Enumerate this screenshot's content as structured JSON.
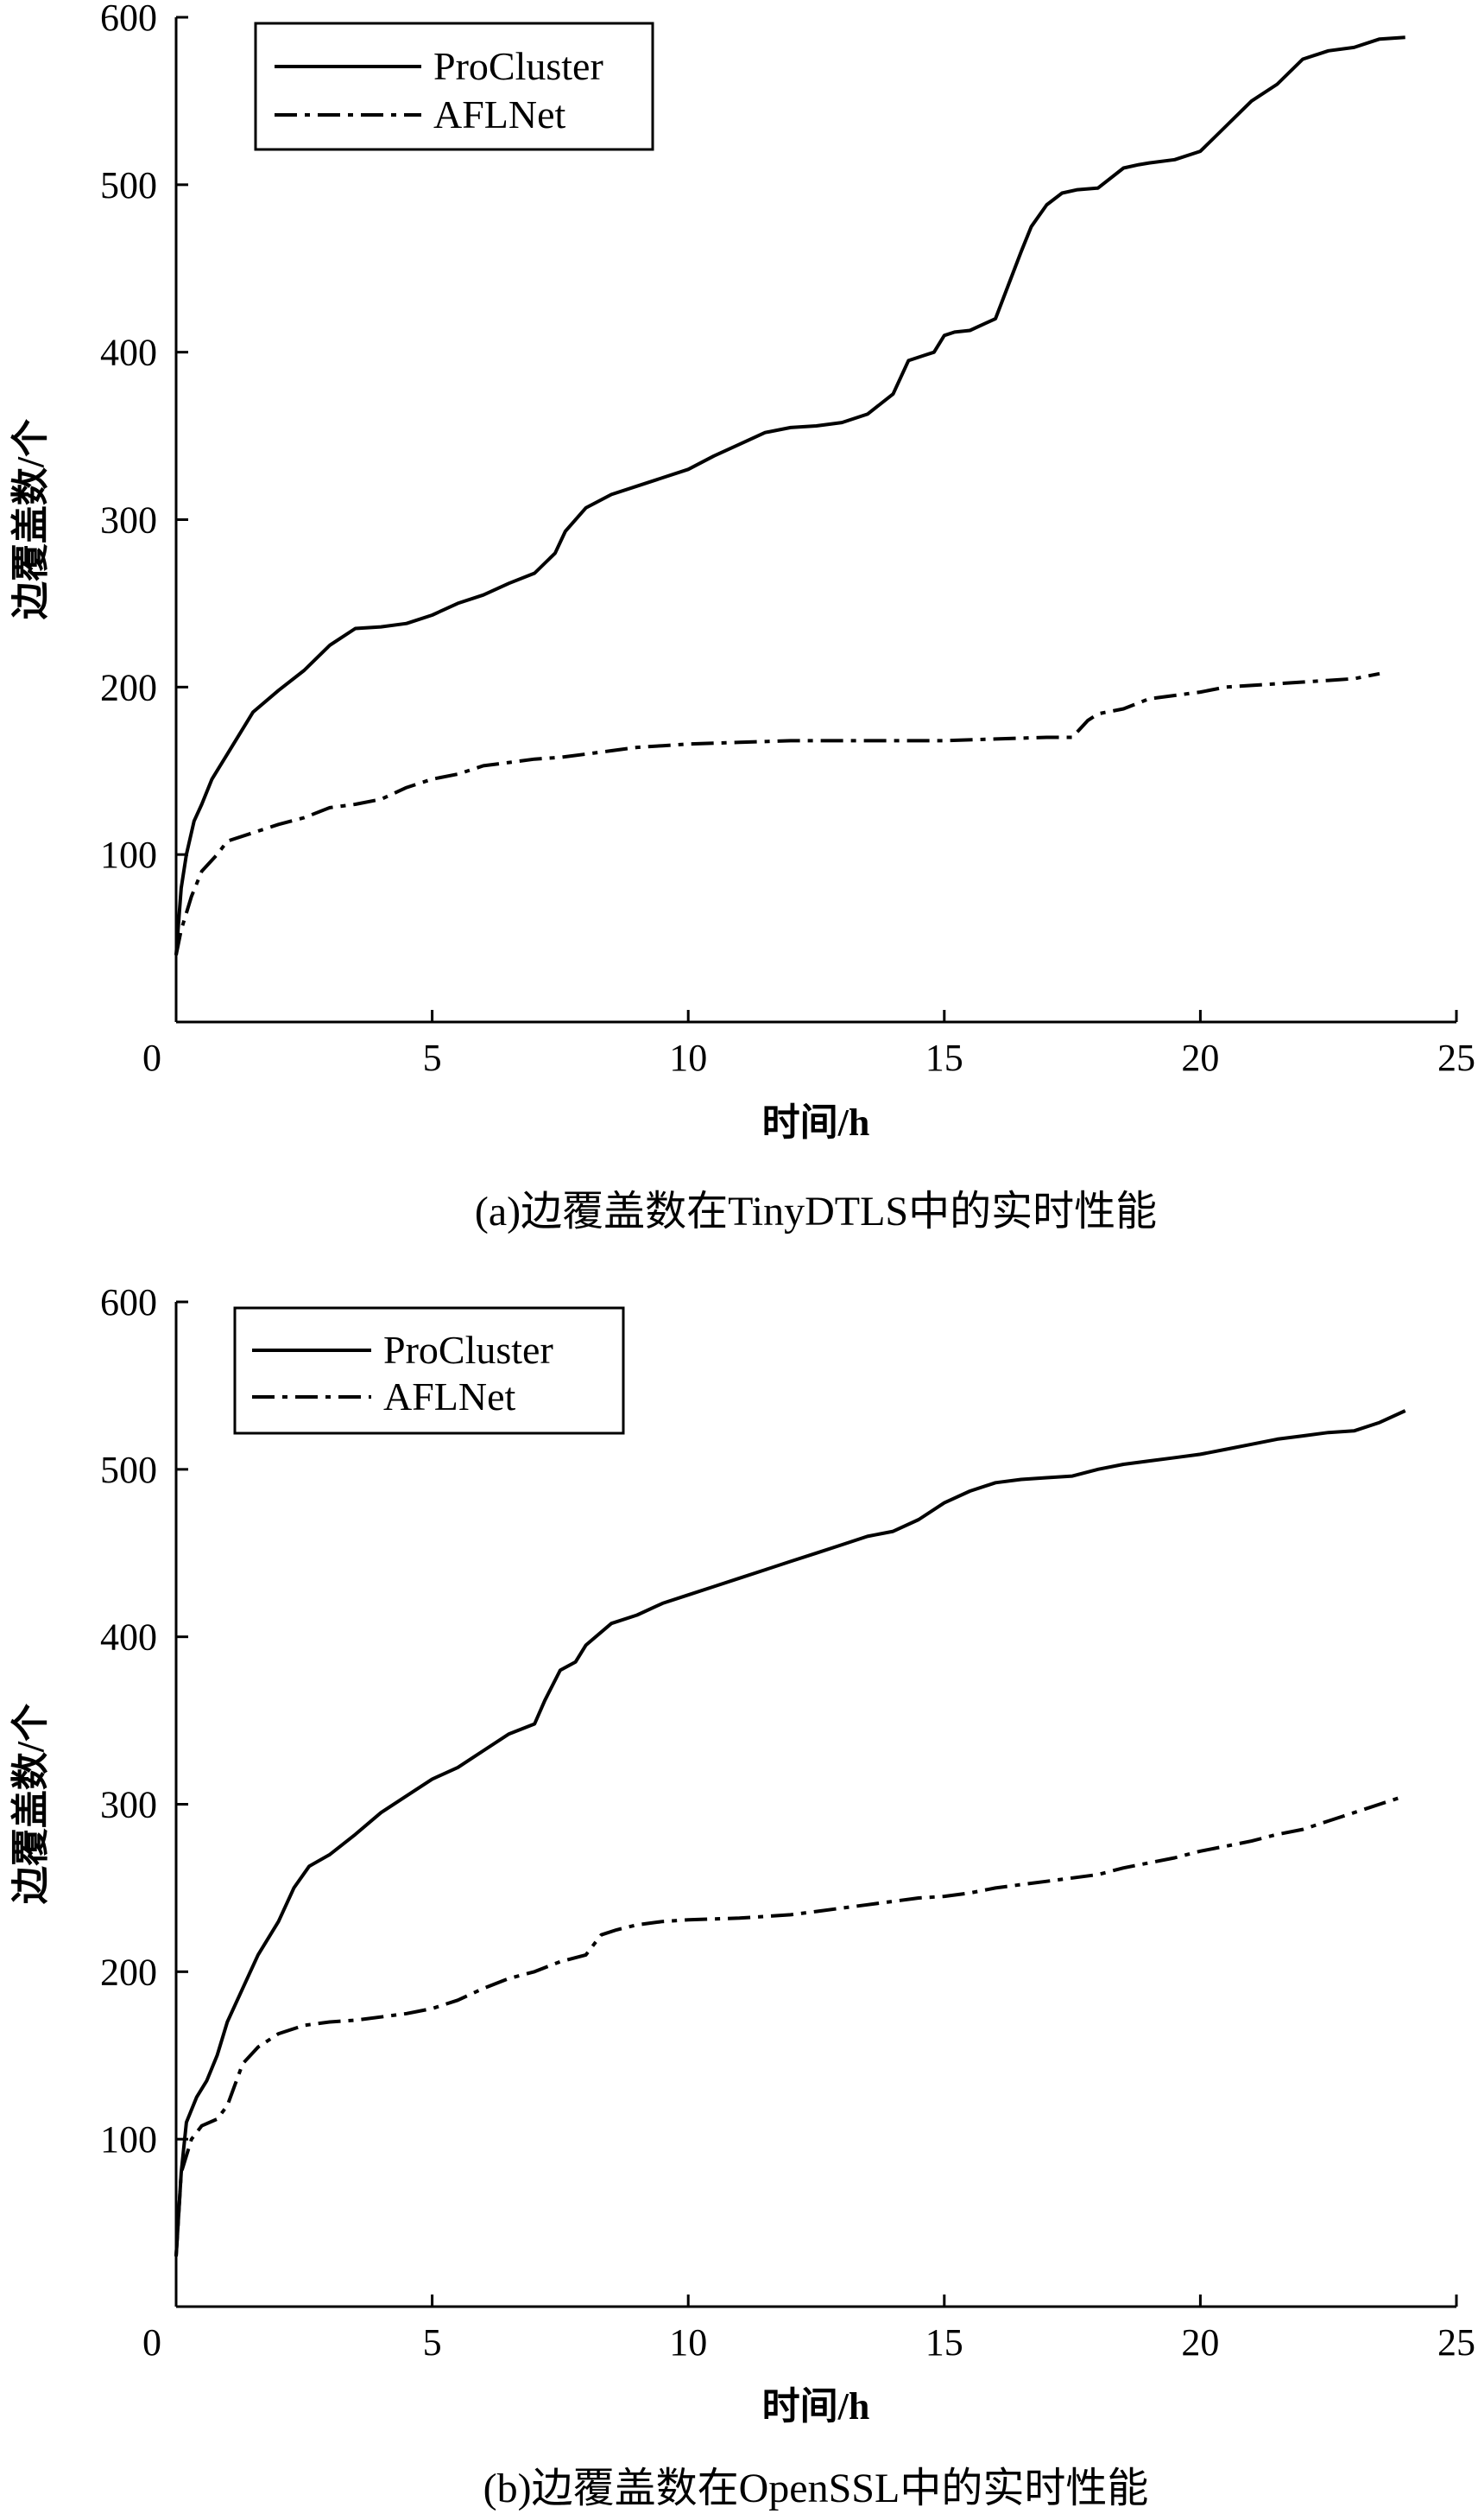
{
  "chart_data": [
    {
      "type": "line",
      "caption": "(a)边覆盖数在TinyDTLS中的实时性能",
      "xlabel": "时间/h",
      "ylabel": "边覆盖数/个",
      "xlim": [
        0,
        25
      ],
      "ylim": [
        0,
        600
      ],
      "xticks": [
        0,
        5,
        10,
        15,
        20,
        25
      ],
      "yticks": [
        100,
        200,
        300,
        400,
        500,
        600
      ],
      "legend_position": "top-left",
      "series": [
        {
          "name": "ProCluster",
          "style": "solid",
          "x": [
            0,
            0.1,
            0.2,
            0.35,
            0.5,
            0.7,
            1.0,
            1.5,
            2.0,
            2.5,
            3.0,
            3.5,
            4.0,
            4.5,
            5.0,
            5.5,
            6.0,
            6.5,
            7.0,
            7.4,
            7.6,
            8.0,
            8.5,
            9.0,
            9.5,
            10.0,
            10.5,
            11.0,
            11.5,
            12.0,
            12.5,
            13.0,
            13.5,
            14.0,
            14.3,
            14.6,
            14.8,
            15.0,
            15.2,
            15.5,
            16.0,
            16.5,
            16.7,
            17.0,
            17.3,
            17.6,
            18.0,
            18.5,
            18.8,
            19.0,
            19.5,
            20.0,
            20.5,
            21.0,
            21.5,
            22.0,
            22.5,
            23.0,
            23.5,
            24.0
          ],
          "y": [
            40,
            80,
            100,
            120,
            130,
            145,
            160,
            185,
            198,
            210,
            225,
            235,
            236,
            238,
            243,
            250,
            255,
            262,
            268,
            280,
            293,
            307,
            315,
            320,
            325,
            330,
            338,
            345,
            352,
            355,
            356,
            358,
            363,
            375,
            395,
            398,
            400,
            410,
            412,
            413,
            420,
            460,
            475,
            488,
            495,
            497,
            498,
            510,
            512,
            513,
            515,
            520,
            535,
            550,
            560,
            575,
            580,
            582,
            587,
            588
          ]
        },
        {
          "name": "AFLNet",
          "style": "dash-dot",
          "x": [
            0,
            0.1,
            0.3,
            0.5,
            0.8,
            1.0,
            1.5,
            2.0,
            2.5,
            3.0,
            3.5,
            4.0,
            4.5,
            5.0,
            5.5,
            6.0,
            6.5,
            7.0,
            7.5,
            8.0,
            8.5,
            9.0,
            9.5,
            10.0,
            11.0,
            12.0,
            13.0,
            14.0,
            15.0,
            16.0,
            17.0,
            17.5,
            17.8,
            18.0,
            18.5,
            19.0,
            19.5,
            20.0,
            20.5,
            21.0,
            22.0,
            22.5,
            23.0,
            23.5
          ],
          "y": [
            40,
            55,
            75,
            90,
            100,
            108,
            113,
            118,
            122,
            128,
            130,
            133,
            140,
            145,
            148,
            153,
            155,
            157,
            158,
            160,
            162,
            164,
            165,
            166,
            167,
            168,
            168,
            168,
            168,
            169,
            170,
            170,
            180,
            184,
            187,
            193,
            195,
            197,
            200,
            201,
            203,
            204,
            205,
            208
          ]
        }
      ]
    },
    {
      "type": "line",
      "caption": "(b)边覆盖数在OpenSSL中的实时性能",
      "xlabel": "时间/h",
      "ylabel": "边覆盖数/个",
      "xlim": [
        0,
        25
      ],
      "ylim": [
        0,
        600
      ],
      "xticks": [
        0,
        5,
        10,
        15,
        20,
        25
      ],
      "yticks": [
        100,
        200,
        300,
        400,
        500,
        600
      ],
      "legend_position": "top-left",
      "series": [
        {
          "name": "ProCluster",
          "style": "solid",
          "x": [
            0,
            0.1,
            0.2,
            0.4,
            0.6,
            0.8,
            1.0,
            1.3,
            1.6,
            2.0,
            2.3,
            2.6,
            3.0,
            3.5,
            4.0,
            4.5,
            5.0,
            5.5,
            6.0,
            6.5,
            7.0,
            7.2,
            7.5,
            7.8,
            8.0,
            8.5,
            9.0,
            9.5,
            10.0,
            10.5,
            11.0,
            11.5,
            12.0,
            12.5,
            13.0,
            13.5,
            14.0,
            14.5,
            15.0,
            15.5,
            16.0,
            16.5,
            17.0,
            17.5,
            18.0,
            18.5,
            19.0,
            19.5,
            20.0,
            20.5,
            21.0,
            21.5,
            22.0,
            22.5,
            23.0,
            23.5,
            24.0
          ],
          "y": [
            30,
            80,
            110,
            125,
            135,
            150,
            170,
            190,
            210,
            230,
            250,
            263,
            270,
            282,
            295,
            305,
            315,
            322,
            332,
            342,
            348,
            362,
            380,
            385,
            395,
            408,
            413,
            420,
            425,
            430,
            435,
            440,
            445,
            450,
            455,
            460,
            463,
            470,
            480,
            487,
            492,
            494,
            495,
            496,
            500,
            503,
            505,
            507,
            509,
            512,
            515,
            518,
            520,
            522,
            523,
            528,
            535
          ]
        },
        {
          "name": "AFLNet",
          "style": "dash-dot",
          "x": [
            0,
            0.1,
            0.3,
            0.5,
            0.8,
            1.0,
            1.3,
            1.6,
            2.0,
            2.5,
            3.0,
            3.5,
            4.0,
            4.5,
            5.0,
            5.5,
            6.0,
            6.5,
            7.0,
            7.5,
            8.0,
            8.3,
            8.6,
            9.0,
            9.5,
            10.0,
            11.0,
            12.0,
            12.5,
            13.0,
            13.5,
            14.0,
            14.5,
            15.0,
            15.5,
            16.0,
            16.5,
            17.0,
            17.5,
            18.0,
            18.5,
            19.0,
            19.5,
            20.0,
            20.5,
            21.0,
            21.5,
            22.0,
            22.5,
            23.0,
            23.5,
            24.0
          ],
          "y": [
            30,
            80,
            100,
            108,
            112,
            120,
            145,
            155,
            163,
            168,
            170,
            171,
            173,
            175,
            178,
            183,
            190,
            196,
            200,
            206,
            210,
            222,
            225,
            228,
            230,
            231,
            232,
            234,
            236,
            238,
            240,
            242,
            244,
            245,
            247,
            250,
            252,
            254,
            256,
            258,
            262,
            265,
            268,
            272,
            275,
            278,
            282,
            285,
            290,
            295,
            300,
            305
          ]
        }
      ]
    }
  ]
}
